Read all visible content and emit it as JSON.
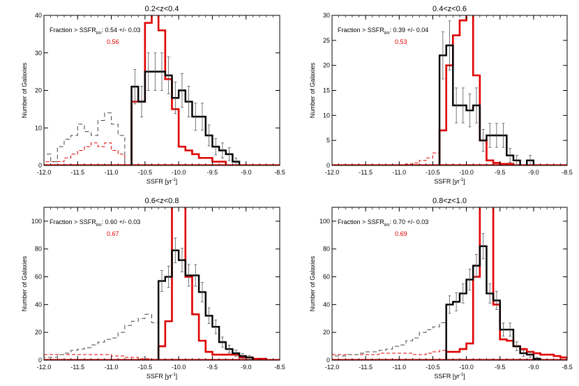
{
  "chart_data": [
    {
      "type": "step",
      "title": "0.2<z<0.4",
      "xlabel": "SSFR [yr",
      "xlabel_sup": "-1",
      "xlabel_end": "]",
      "ylabel": "Number of Galaxies",
      "xlim": [
        -12.0,
        -8.5
      ],
      "ylim": [
        0,
        40
      ],
      "xticks": [
        -12.0,
        -11.5,
        -11.0,
        -10.5,
        -10.0,
        -9.5,
        -9.0,
        -8.5
      ],
      "xtick_labels": [
        "-12.0",
        "-11.5",
        "-11.0",
        "-10.5",
        "-10.0",
        "-9.5",
        "-9.0",
        "-8.5"
      ],
      "yticks": [
        0,
        10,
        20,
        30,
        40
      ],
      "ytick_labels": [
        "0",
        "10",
        "20",
        "30",
        "40"
      ],
      "annotation": {
        "prefix": "Fraction > SSFR",
        "sub": "lim",
        "value": ":  0.54 +/-  0.03",
        "red_value": "0.56"
      },
      "bin_edges": [
        -12.0,
        -11.9,
        -11.8,
        -11.7,
        -11.6,
        -11.5,
        -11.4,
        -11.3,
        -11.2,
        -11.1,
        -11.0,
        -10.9,
        -10.8,
        -10.7,
        -10.6,
        -10.5,
        -10.4,
        -10.3,
        -10.2,
        -10.1,
        -10.0,
        -9.9,
        -9.8,
        -9.7,
        -9.6,
        -9.5,
        -9.4,
        -9.3,
        -9.2,
        -9.1,
        -9.0,
        -8.9,
        -8.8,
        -8.7,
        -8.6,
        -8.5
      ],
      "black_dashed": [
        3,
        1,
        5,
        7,
        8,
        11,
        9,
        8,
        12,
        14,
        11,
        8,
        0,
        0,
        0,
        0,
        0,
        0,
        0,
        0,
        0,
        0,
        0,
        0,
        0,
        0,
        0,
        0,
        0,
        0,
        0,
        0,
        0,
        0,
        0
      ],
      "black_solid": [
        0,
        0,
        0,
        0,
        0,
        0,
        0,
        0,
        0,
        0,
        0,
        0,
        0,
        21,
        17,
        25,
        25,
        25,
        24,
        18,
        20,
        17,
        13,
        13,
        8,
        5,
        4,
        3,
        1,
        0,
        0,
        0,
        0,
        0,
        0
      ],
      "black_errors": [
        0,
        0,
        0,
        0,
        0,
        0,
        0,
        0,
        0,
        0,
        0,
        0,
        0,
        4.6,
        4.1,
        5,
        5,
        5,
        4.9,
        4.2,
        4.5,
        4.1,
        3.6,
        3.6,
        2.8,
        2.2,
        2,
        1.7,
        1,
        0,
        0,
        0,
        0,
        0,
        0
      ],
      "red_dashed": [
        1,
        1,
        1,
        2,
        3,
        4,
        5,
        6,
        5,
        6,
        4,
        3,
        0,
        0,
        0,
        0,
        0,
        0,
        0,
        0,
        0,
        0,
        0,
        0,
        0,
        0,
        0,
        0,
        0,
        0,
        0,
        0,
        0,
        0,
        0
      ],
      "red_solid": [
        0,
        0,
        0,
        0,
        0,
        0,
        0,
        0,
        0,
        0,
        0,
        0,
        0,
        17,
        17,
        38,
        51,
        36,
        23,
        15,
        5,
        4,
        3,
        2,
        2,
        1,
        1,
        0,
        0,
        0,
        0,
        0,
        0,
        0,
        0
      ]
    },
    {
      "type": "step",
      "title": "0.4<z<0.6",
      "xlabel": "SSFR [yr",
      "xlabel_sup": "-1",
      "xlabel_end": "]",
      "ylabel": "Number of Galaxies",
      "xlim": [
        -12.0,
        -8.5
      ],
      "ylim": [
        0,
        30
      ],
      "xticks": [
        -12.0,
        -11.5,
        -11.0,
        -10.5,
        -10.0,
        -9.5,
        -9.0,
        -8.5
      ],
      "xtick_labels": [
        "-12.0",
        "-11.5",
        "-11.0",
        "-10.5",
        "-10.0",
        "-9.5",
        "-9.0",
        "-8.5"
      ],
      "yticks": [
        0,
        5,
        10,
        15,
        20,
        25,
        30
      ],
      "ytick_labels": [
        "0",
        "5",
        "10",
        "15",
        "20",
        "25",
        "30"
      ],
      "annotation": {
        "prefix": "Fraction > SSFR",
        "sub": "lim",
        "value": ":  0.39 +/-  0.04",
        "red_value": "0.53"
      },
      "bin_edges": [
        -12.0,
        -11.9,
        -11.8,
        -11.7,
        -11.6,
        -11.5,
        -11.4,
        -11.3,
        -11.2,
        -11.1,
        -11.0,
        -10.9,
        -10.8,
        -10.7,
        -10.6,
        -10.5,
        -10.4,
        -10.3,
        -10.2,
        -10.1,
        -10.0,
        -9.9,
        -9.8,
        -9.7,
        -9.6,
        -9.5,
        -9.4,
        -9.3,
        -9.2,
        -9.1,
        -9.0,
        -8.9,
        -8.8,
        -8.7,
        -8.6,
        -8.5
      ],
      "black_dashed": [
        0,
        0,
        0,
        0,
        0,
        0,
        0,
        0,
        0,
        0,
        0,
        0,
        0,
        0,
        0,
        0,
        0,
        0,
        0,
        0,
        0,
        0,
        0,
        0,
        0,
        0,
        0,
        0,
        0,
        0,
        0,
        0,
        0,
        0,
        0
      ],
      "black_solid": [
        0,
        0,
        0,
        0,
        0,
        0,
        0,
        0,
        0,
        0,
        0,
        0,
        0,
        0,
        0,
        0,
        22,
        24,
        12,
        12,
        11,
        12,
        5,
        6,
        6,
        6,
        2,
        1,
        0,
        1,
        0,
        0,
        0,
        0,
        0
      ],
      "black_errors": [
        0,
        0,
        0,
        0,
        0,
        0,
        0,
        0,
        0,
        0,
        0,
        0,
        0,
        0,
        0,
        0,
        4.7,
        4.9,
        3.5,
        3.5,
        3.3,
        3.5,
        2.2,
        2.4,
        2.4,
        2.4,
        1.4,
        1,
        0,
        1,
        0,
        0,
        0,
        0,
        0
      ],
      "red_dashed": [
        0,
        0,
        0,
        0,
        0,
        0,
        0,
        0,
        0,
        0,
        0,
        0.3,
        0.5,
        1,
        1.5,
        2.5,
        0,
        0,
        0,
        0,
        0,
        0,
        0,
        0,
        0,
        0,
        0,
        0,
        0,
        0,
        0,
        0,
        0,
        0,
        0
      ],
      "red_solid": [
        0,
        0,
        0,
        0,
        0,
        0,
        0,
        0,
        0,
        0,
        0,
        0,
        0,
        0,
        0,
        0,
        7,
        20,
        26,
        29,
        38,
        18,
        5,
        1,
        0.5,
        0.3,
        0.3,
        0,
        0,
        0,
        0,
        0,
        0,
        0,
        0
      ]
    },
    {
      "type": "step",
      "title": "0.6<z<0.8",
      "xlabel": "SSFR [yr",
      "xlabel_sup": "-1",
      "xlabel_end": "]",
      "ylabel": "Number of Galaxies",
      "xlim": [
        -12.0,
        -8.5
      ],
      "ylim": [
        0,
        110
      ],
      "xticks": [
        -12.0,
        -11.5,
        -11.0,
        -10.5,
        -10.0,
        -9.5,
        -9.0,
        -8.5
      ],
      "xtick_labels": [
        "-12.0",
        "-11.5",
        "-11.0",
        "-10.5",
        "-10.0",
        "-9.5",
        "-9.0",
        "-8.5"
      ],
      "yticks": [
        0,
        20,
        40,
        60,
        80,
        100
      ],
      "ytick_labels": [
        "0",
        "20",
        "40",
        "60",
        "80",
        "100"
      ],
      "annotation": {
        "prefix": "Fraction > SSFR",
        "sub": "lim",
        "value": ":  0.60 +/-  0.03",
        "red_value": "0.67"
      },
      "bin_edges": [
        -12.0,
        -11.9,
        -11.8,
        -11.7,
        -11.6,
        -11.5,
        -11.4,
        -11.3,
        -11.2,
        -11.1,
        -11.0,
        -10.9,
        -10.8,
        -10.7,
        -10.6,
        -10.5,
        -10.4,
        -10.3,
        -10.2,
        -10.1,
        -10.0,
        -9.9,
        -9.8,
        -9.7,
        -9.6,
        -9.5,
        -9.4,
        -9.3,
        -9.2,
        -9.1,
        -9.0,
        -8.9,
        -8.8,
        -8.7,
        -8.6,
        -8.5
      ],
      "black_dashed": [
        2,
        2,
        4,
        5,
        7,
        8,
        9,
        11,
        13,
        15,
        16,
        20,
        25,
        28,
        30,
        33,
        27,
        0,
        0,
        0,
        0,
        0,
        0,
        0,
        0,
        0,
        0,
        0,
        0,
        0,
        0,
        0,
        0,
        0,
        0
      ],
      "black_solid": [
        0,
        0,
        0,
        0,
        0,
        0,
        0,
        0,
        0,
        0,
        0,
        0,
        0,
        0,
        0,
        0,
        0,
        57,
        60,
        79,
        72,
        61,
        61,
        49,
        32,
        24,
        13,
        8,
        5,
        3,
        2,
        0,
        0,
        0,
        0
      ],
      "black_errors": [
        0,
        0,
        0,
        0,
        0,
        0,
        0,
        0,
        0,
        0,
        0,
        0,
        0,
        0,
        0,
        0,
        0,
        7.5,
        7.7,
        8.9,
        8.5,
        7.8,
        7.8,
        7,
        5.7,
        4.9,
        3.6,
        2.8,
        2.2,
        1.7,
        1.4,
        0,
        0,
        0,
        0
      ],
      "red_dashed": [
        4,
        4,
        4,
        4,
        4,
        4,
        4,
        4,
        4,
        4,
        3,
        3,
        2,
        2,
        1,
        1,
        0,
        0,
        0,
        0,
        0,
        0,
        0,
        0,
        0,
        0,
        0,
        0,
        0,
        0,
        0,
        0,
        0,
        0,
        0
      ],
      "red_solid": [
        0,
        0,
        0,
        0,
        0,
        0,
        0,
        0,
        0,
        0,
        0,
        0,
        0,
        0,
        0,
        0,
        0,
        10,
        28,
        150,
        150,
        60,
        33,
        14,
        6,
        4,
        4,
        4,
        4,
        2,
        2,
        1,
        1,
        0,
        0
      ]
    },
    {
      "type": "step",
      "title": "0.8<z<1.0",
      "xlabel": "SSFR [yr",
      "xlabel_sup": "-1",
      "xlabel_end": "]",
      "ylabel": "Number of Galaxies",
      "xlim": [
        -12.0,
        -8.5
      ],
      "ylim": [
        0,
        110
      ],
      "xticks": [
        -12.0,
        -11.5,
        -11.0,
        -10.5,
        -10.0,
        -9.5,
        -9.0,
        -8.5
      ],
      "xtick_labels": [
        "-12.0",
        "-11.5",
        "-11.0",
        "-10.5",
        "-10.0",
        "-9.5",
        "-9.0",
        "-8.5"
      ],
      "yticks": [
        0,
        20,
        40,
        60,
        80,
        100
      ],
      "ytick_labels": [
        "0",
        "20",
        "40",
        "60",
        "80",
        "100"
      ],
      "annotation": {
        "prefix": "Fraction > SSFR",
        "sub": "lim",
        "value": ":  0.70 +/-  0.03",
        "red_value": "0.69"
      },
      "bin_edges": [
        -12.0,
        -11.9,
        -11.8,
        -11.7,
        -11.6,
        -11.5,
        -11.4,
        -11.3,
        -11.2,
        -11.1,
        -11.0,
        -10.9,
        -10.8,
        -10.7,
        -10.6,
        -10.5,
        -10.4,
        -10.3,
        -10.2,
        -10.1,
        -10.0,
        -9.9,
        -9.8,
        -9.7,
        -9.6,
        -9.5,
        -9.4,
        -9.3,
        -9.2,
        -9.1,
        -9.0,
        -8.9,
        -8.8,
        -8.7,
        -8.6,
        -8.5
      ],
      "black_dashed": [
        3,
        3,
        4,
        4,
        5,
        6,
        6,
        7,
        8,
        10,
        11,
        14,
        16,
        20,
        22,
        24,
        27,
        0,
        0,
        0,
        0,
        0,
        0,
        0,
        0,
        0,
        0,
        0,
        0,
        0,
        0,
        0,
        0,
        0,
        0
      ],
      "black_solid": [
        0,
        0,
        0,
        0,
        0,
        0,
        0,
        0,
        0,
        0,
        0,
        0,
        0,
        0,
        0,
        0,
        0,
        40,
        42,
        48,
        58,
        68,
        82,
        48,
        43,
        22,
        22,
        10,
        5,
        4,
        1,
        0,
        0,
        0,
        0
      ],
      "black_errors": [
        0,
        0,
        0,
        0,
        0,
        0,
        0,
        0,
        0,
        0,
        0,
        0,
        0,
        0,
        0,
        0,
        0,
        6.3,
        6.5,
        6.9,
        7.6,
        8.2,
        9.1,
        6.9,
        6.6,
        4.7,
        4.7,
        3.2,
        2.2,
        2,
        1,
        0,
        0,
        0,
        0
      ],
      "red_dashed": [
        4,
        4,
        4,
        4,
        4,
        4,
        4,
        5,
        5,
        5,
        5,
        5,
        4,
        4,
        5,
        6,
        7,
        0,
        0,
        0,
        0,
        0,
        0,
        0,
        0,
        0,
        0,
        0,
        0,
        0,
        0,
        0,
        0,
        0,
        0
      ],
      "red_solid": [
        0,
        0,
        0,
        0,
        0,
        0,
        0,
        0,
        0,
        0,
        0,
        0,
        0,
        0,
        0,
        0,
        0,
        6,
        6,
        8,
        12,
        60,
        150,
        150,
        40,
        15,
        14,
        10,
        8,
        6,
        5,
        4,
        4,
        3,
        2
      ]
    }
  ]
}
